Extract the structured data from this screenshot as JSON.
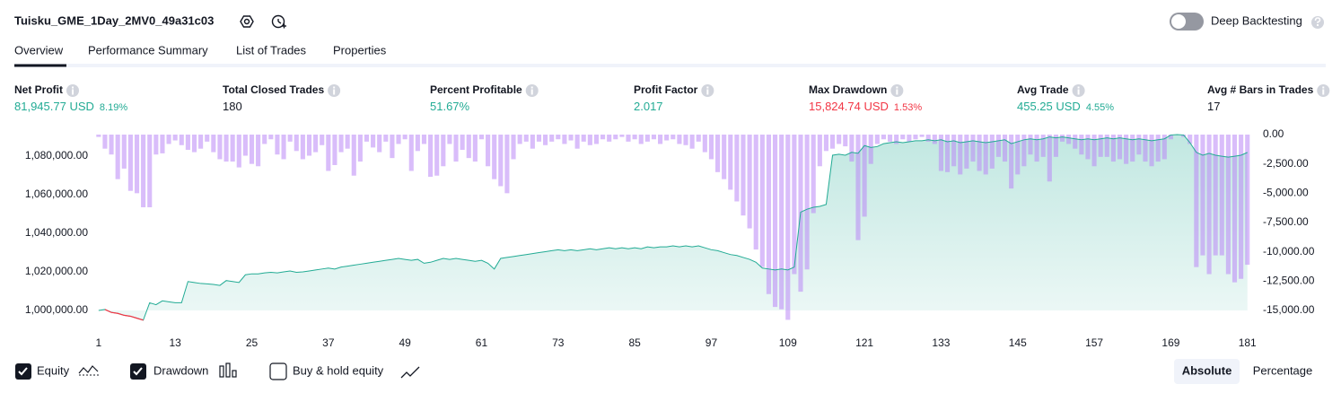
{
  "header": {
    "title": "Tuisku_GME_1Day_2MV0_49a31c03",
    "deep_backtesting": "Deep Backtesting"
  },
  "tabs": [
    "Overview",
    "Performance Summary",
    "List of Trades",
    "Properties"
  ],
  "metrics": [
    {
      "label": "Net Profit",
      "value": "81,945.77 USD",
      "percent": "8.19%",
      "color": "#22ab94"
    },
    {
      "label": "Total Closed Trades",
      "value": "180",
      "color": "#131722"
    },
    {
      "label": "Percent Profitable",
      "value": "51.67%",
      "color": "#22ab94"
    },
    {
      "label": "Profit Factor",
      "value": "2.017",
      "color": "#22ab94"
    },
    {
      "label": "Max Drawdown",
      "value": "15,824.74 USD",
      "percent": "1.53%",
      "color": "#f23645"
    },
    {
      "label": "Avg Trade",
      "value": "455.25 USD",
      "percent": "4.55%",
      "color": "#22ab94"
    },
    {
      "label": "Avg # Bars in Trades",
      "value": "17",
      "color": "#131722"
    }
  ],
  "chart_data": {
    "type": "equity",
    "x": [
      1,
      2,
      3,
      4,
      5,
      6,
      7,
      8,
      9,
      10,
      11,
      12,
      13,
      14,
      15,
      16,
      17,
      18,
      19,
      20,
      21,
      22,
      23,
      24,
      25,
      26,
      27,
      28,
      29,
      30,
      31,
      32,
      33,
      34,
      35,
      36,
      37,
      38,
      39,
      40,
      41,
      42,
      43,
      44,
      45,
      46,
      47,
      48,
      49,
      50,
      51,
      52,
      53,
      54,
      55,
      56,
      57,
      58,
      59,
      60,
      61,
      62,
      63,
      64,
      65,
      66,
      67,
      68,
      69,
      70,
      71,
      72,
      73,
      74,
      75,
      76,
      77,
      78,
      79,
      80,
      81,
      82,
      83,
      84,
      85,
      86,
      87,
      88,
      89,
      90,
      91,
      92,
      93,
      94,
      95,
      96,
      97,
      98,
      99,
      100,
      101,
      102,
      103,
      104,
      105,
      106,
      107,
      108,
      109,
      110,
      111,
      112,
      113,
      114,
      115,
      116,
      117,
      118,
      119,
      120,
      121,
      122,
      123,
      124,
      125,
      126,
      127,
      128,
      129,
      130,
      131,
      132,
      133,
      134,
      135,
      136,
      137,
      138,
      139,
      140,
      141,
      142,
      143,
      144,
      145,
      146,
      147,
      148,
      149,
      150,
      151,
      152,
      153,
      154,
      155,
      156,
      157,
      158,
      159,
      160,
      161,
      162,
      163,
      164,
      165,
      166,
      167,
      168,
      169,
      170,
      171,
      172,
      173,
      174,
      175,
      176,
      177,
      178,
      179,
      180,
      181
    ],
    "series": [
      {
        "name": "Equity",
        "color": "#22ab94",
        "loss_color": "#f23645",
        "values": [
          1000000,
          1000500,
          999000,
          998500,
          997500,
          997000,
          996000,
          995000,
          1004000,
          1003000,
          1005000,
          1004500,
          1004000,
          1004000,
          1015000,
          1014500,
          1014000,
          1013800,
          1013500,
          1013000,
          1015500,
          1015000,
          1014500,
          1018500,
          1019000,
          1019000,
          1019500,
          1019800,
          1019500,
          1020000,
          1020500,
          1019800,
          1020000,
          1020500,
          1021000,
          1021500,
          1022000,
          1021500,
          1022500,
          1023000,
          1023500,
          1024000,
          1024500,
          1025000,
          1025500,
          1026000,
          1026500,
          1027000,
          1026500,
          1026000,
          1026500,
          1024500,
          1025000,
          1026000,
          1027000,
          1026500,
          1027000,
          1026500,
          1026000,
          1025500,
          1026000,
          1024500,
          1021500,
          1027000,
          1027500,
          1028000,
          1028500,
          1029000,
          1029500,
          1030000,
          1030500,
          1031000,
          1031500,
          1031000,
          1031500,
          1031000,
          1031500,
          1032000,
          1031500,
          1032000,
          1032500,
          1032000,
          1032500,
          1032000,
          1032500,
          1032000,
          1033000,
          1032500,
          1033000,
          1033000,
          1033500,
          1033000,
          1033500,
          1033000,
          1033500,
          1032500,
          1031500,
          1031000,
          1030000,
          1029000,
          1028500,
          1027500,
          1026500,
          1025000,
          1022000,
          1021500,
          1021000,
          1021500,
          1021000,
          1022500,
          1051000,
          1052500,
          1053500,
          1054000,
          1055000,
          1080500,
          1081000,
          1080500,
          1082000,
          1081500,
          1085500,
          1084500,
          1085000,
          1086500,
          1087000,
          1087500,
          1087000,
          1087500,
          1088000,
          1088000,
          1088500,
          1088000,
          1088500,
          1087500,
          1088000,
          1087000,
          1087500,
          1088000,
          1087500,
          1087000,
          1087500,
          1088000,
          1088500,
          1086500,
          1087500,
          1088500,
          1089000,
          1088500,
          1089000,
          1090000,
          1089500,
          1090000,
          1089500,
          1089000,
          1088500,
          1089000,
          1088500,
          1089000,
          1089500,
          1089000,
          1089500,
          1089000,
          1088500,
          1089000,
          1088500,
          1088000,
          1088500,
          1089000,
          1091000,
          1091200,
          1091000,
          1087000,
          1082000,
          1080500,
          1081500,
          1080500,
          1080000,
          1079500,
          1080000,
          1080500,
          1081946
        ]
      },
      {
        "name": "Drawdown",
        "color": "rgba(186,135,245,0.55)",
        "axis": "y2",
        "values": [
          -200,
          -1200,
          -1700,
          -3800,
          -2900,
          -4800,
          -5000,
          -6200,
          -6200,
          -1700,
          -1600,
          -800,
          -500,
          -900,
          -1300,
          -1500,
          -1200,
          -600,
          -1500,
          -2100,
          -2300,
          -2300,
          -2800,
          -1800,
          -2500,
          -2700,
          -800,
          -400,
          -1700,
          -2100,
          -600,
          -1400,
          -2100,
          -1800,
          -1500,
          -900,
          -3100,
          -2600,
          -1500,
          -1200,
          -3500,
          -2300,
          -600,
          -1100,
          -1500,
          -600,
          -2000,
          -800,
          -400,
          -3100,
          -1400,
          -800,
          -3600,
          -3500,
          -2700,
          -800,
          -2300,
          -1300,
          -2000,
          -2300,
          -400,
          -2700,
          -3800,
          -4400,
          -5000,
          -2100,
          -800,
          -600,
          -1200,
          -600,
          -900,
          -600,
          -400,
          -800,
          -500,
          -1200,
          -600,
          -900,
          -800,
          -400,
          -600,
          -400,
          -200,
          -600,
          -400,
          -800,
          -600,
          -400,
          -800,
          -500,
          -400,
          -800,
          -900,
          -1200,
          -600,
          -1500,
          -2100,
          -3200,
          -3800,
          -4700,
          -5700,
          -6900,
          -8000,
          -9800,
          -11300,
          -13600,
          -14700,
          -14900,
          -15800,
          -11900,
          -13400,
          -11500,
          -6700,
          -2700,
          -1400,
          -1200,
          -800,
          -1000,
          -2300,
          -9000,
          -7000,
          -2500,
          -800,
          -400,
          -600,
          -800,
          -400,
          -600,
          -400,
          -200,
          -600,
          -800,
          -3100,
          -3200,
          -2700,
          -3400,
          -2900,
          -2300,
          -3100,
          -3400,
          -2900,
          -1900,
          -2300,
          -4600,
          -3400,
          -2700,
          -1700,
          -2300,
          -1900,
          -4000,
          -1900,
          -600,
          -800,
          -1200,
          -1700,
          -2100,
          -2700,
          -1900,
          -1900,
          -2300,
          -2100,
          -2500,
          -2300,
          -1700,
          -2300,
          -2700,
          -2300,
          -2100,
          -400,
          0,
          -200,
          -800,
          -11300,
          -10300,
          -11900,
          -10300,
          -10300,
          -11900,
          -12600,
          -12300,
          -11100
        ]
      }
    ],
    "xlim": [
      0.6,
      181.6
    ],
    "xticks": [
      1,
      13,
      25,
      37,
      49,
      61,
      73,
      85,
      97,
      109,
      121,
      133,
      145,
      157,
      169,
      181
    ],
    "ylim": [
      993500,
      1091200
    ],
    "yticks": [
      {
        "value": 1000000,
        "label": "1,000,000.00"
      },
      {
        "value": 1020000,
        "label": "1,020,000.00"
      },
      {
        "value": 1040000,
        "label": "1,040,000.00"
      },
      {
        "value": 1060000,
        "label": "1,060,000.00"
      },
      {
        "value": 1080000,
        "label": "1,080,000.00"
      }
    ],
    "y2lim": [
      -16070,
      0
    ],
    "y2ticks": [
      {
        "value": 0,
        "label": "0.00"
      },
      {
        "value": -2500,
        "label": "-2,500.00"
      },
      {
        "value": -5000,
        "label": "-5,000.00"
      },
      {
        "value": -7500,
        "label": "-7,500.00"
      },
      {
        "value": -10000,
        "label": "-10,000.00"
      },
      {
        "value": -12500,
        "label": "-12,500.00"
      },
      {
        "value": -15000,
        "label": "-15,000.00"
      }
    ]
  },
  "controls": {
    "buy_hold": "Buy & hold equity",
    "modes": [
      "Absolute",
      "Percentage"
    ]
  }
}
